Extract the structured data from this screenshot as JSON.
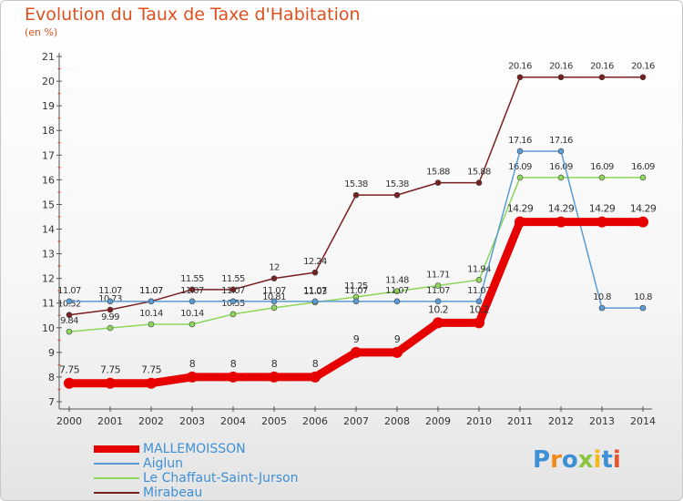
{
  "header": {
    "title": "Evolution du Taux de Taxe d'Habitation",
    "subtitle": "(en %)"
  },
  "logo": {
    "text": "Proxiti"
  },
  "chart_data": {
    "type": "line",
    "title": "Evolution du Taux de Taxe d'Habitation",
    "ylabel": "(en %)",
    "xlabel": "",
    "x": [
      "2000",
      "2001",
      "2002",
      "2003",
      "2004",
      "2005",
      "2006",
      "2007",
      "2008",
      "2009",
      "2010",
      "2011",
      "2012",
      "2013",
      "2014"
    ],
    "ylim": [
      7,
      21
    ],
    "yticks": [
      "7",
      "8",
      "9",
      "10",
      "11",
      "12",
      "13",
      "14",
      "15",
      "16",
      "17",
      "18",
      "19",
      "20",
      "21"
    ],
    "grid": false,
    "legend": "bottom-left",
    "series": [
      {
        "name": "Mirabeau",
        "color": "#7a1f1f",
        "values": [
          10.52,
          10.73,
          11.07,
          11.55,
          11.55,
          12,
          12.24,
          15.38,
          15.38,
          15.88,
          15.88,
          20.16,
          20.16,
          20.16,
          20.16
        ],
        "labels": [
          "10.52",
          "10.73",
          "11.07",
          "11.55",
          "11.55",
          "12",
          "12.24",
          "15.38",
          "15.38",
          "15.88",
          "15.88",
          "20.16",
          "20.16",
          "20.16",
          "20.16"
        ]
      },
      {
        "name": "Le Chaffaut-Saint-Jurson",
        "color": "#8cd65a",
        "values": [
          9.84,
          9.99,
          10.14,
          10.14,
          10.55,
          10.81,
          11.03,
          11.25,
          11.48,
          11.71,
          11.94,
          16.09,
          16.09,
          16.09,
          16.09
        ],
        "labels": [
          "9.84",
          "9.99",
          "10.14",
          "10.14",
          "10.55",
          "10.81",
          "11.03",
          "11.25",
          "11.48",
          "11.71",
          "11.94",
          "16.09",
          "16.09",
          "16.09",
          "16.09"
        ]
      },
      {
        "name": "Aiglun",
        "color": "#5b9bd5",
        "values": [
          11.07,
          11.07,
          11.07,
          11.07,
          11.07,
          11.07,
          11.07,
          11.07,
          11.07,
          11.07,
          11.07,
          17.16,
          17.16,
          10.8,
          10.8
        ],
        "labels": [
          "11.07",
          "11.07",
          "11.07",
          "11.07",
          "11.07",
          "11.07",
          "11.07",
          "11.07",
          "11.07",
          "11.07",
          "11.07",
          "17.16",
          "17.16",
          "10.8",
          "10.8"
        ]
      },
      {
        "name": "MALLEMOISSON",
        "color": "#e60000",
        "values": [
          7.75,
          7.75,
          7.75,
          8,
          8,
          8,
          8,
          9,
          9,
          10.2,
          10.2,
          14.29,
          14.29,
          14.29,
          14.29
        ],
        "labels": [
          "7.75",
          "7.75",
          "7.75",
          "8",
          "8",
          "8",
          "8",
          "9",
          "9",
          "10.2",
          "10.2",
          "14.29",
          "14.29",
          "14.29",
          "14.29"
        ]
      }
    ]
  },
  "legend": {
    "items": [
      {
        "label": "MALLEMOISSON",
        "color": "#e60000"
      },
      {
        "label": "Aiglun",
        "color": "#5b9bd5"
      },
      {
        "label": "Le Chaffaut-Saint-Jurson",
        "color": "#8cd65a"
      },
      {
        "label": "Mirabeau",
        "color": "#7a1f1f"
      }
    ]
  }
}
